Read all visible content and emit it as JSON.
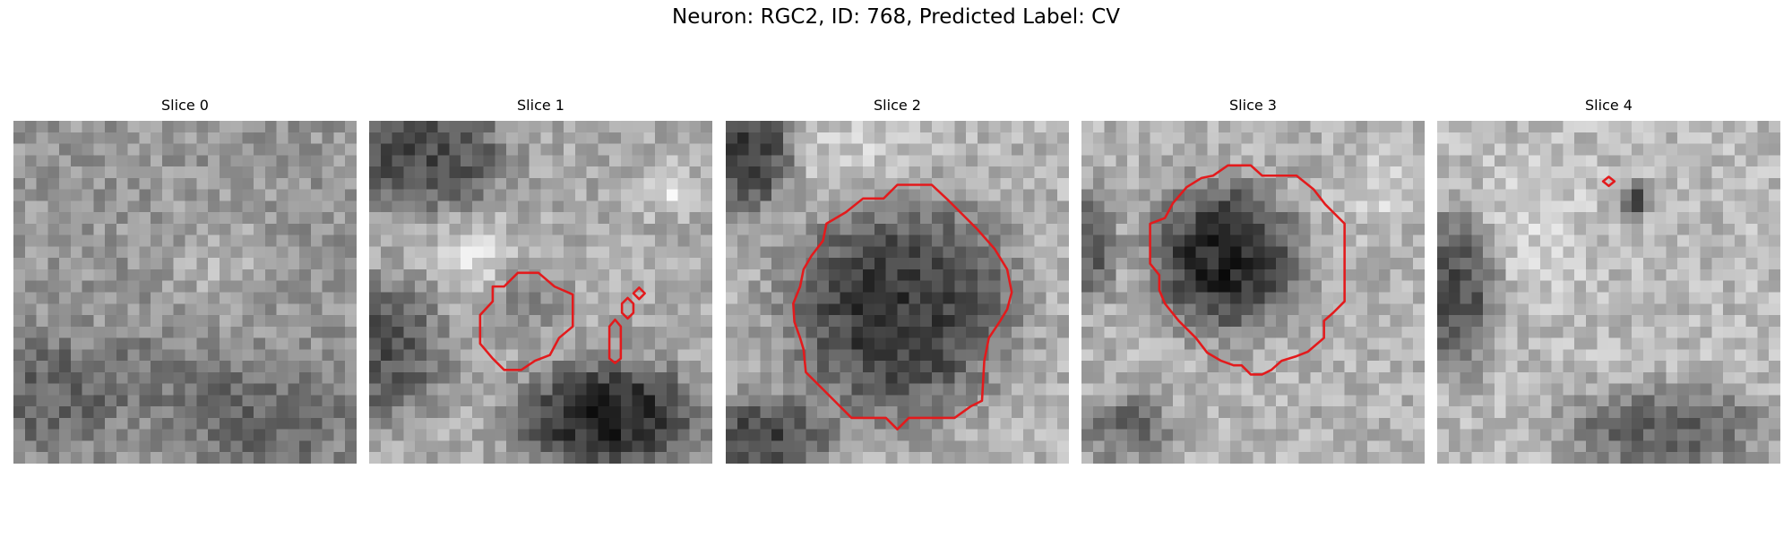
{
  "figure": {
    "title": "Neuron: RGC2, ID: 768, Predicted Label: CV"
  },
  "colors": {
    "contour": "#e31a1c",
    "colormap": "gray"
  },
  "panels": [
    {
      "title": "Slice 0"
    },
    {
      "title": "Slice 1"
    },
    {
      "title": "Slice 2"
    },
    {
      "title": "Slice 3"
    },
    {
      "title": "Slice 4"
    }
  ]
}
